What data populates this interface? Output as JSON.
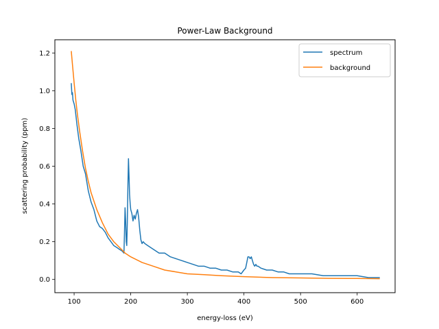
{
  "chart_data": {
    "type": "line",
    "title": "Power-Law Background",
    "xlabel": "energy-loss (eV)",
    "ylabel": "scattering probability (ppm)",
    "xlim": [
      66,
      667
    ],
    "ylim": [
      -0.07,
      1.27
    ],
    "xticks": [
      100,
      200,
      300,
      400,
      500,
      600
    ],
    "yticks": [
      0.0,
      0.2,
      0.4,
      0.6,
      0.8,
      1.0,
      1.2
    ],
    "xtick_labels": [
      "100",
      "200",
      "300",
      "400",
      "500",
      "600"
    ],
    "ytick_labels": [
      "0.0",
      "0.2",
      "0.4",
      "0.6",
      "0.8",
      "1.0",
      "1.2"
    ],
    "legend": {
      "position": "top-right"
    },
    "grid": false,
    "series": [
      {
        "name": "spectrum",
        "color": "#1f77b4",
        "x": [
          95,
          96,
          97,
          98,
          100,
          102,
          105,
          108,
          112,
          116,
          120,
          125,
          130,
          135,
          140,
          145,
          150,
          155,
          160,
          165,
          170,
          175,
          180,
          185,
          188,
          189,
          190,
          191,
          192,
          193,
          194,
          195,
          196,
          197,
          198,
          199,
          200,
          202,
          204,
          206,
          208,
          210,
          212,
          214,
          216,
          218,
          220,
          222,
          225,
          230,
          240,
          250,
          260,
          270,
          280,
          290,
          300,
          310,
          320,
          330,
          340,
          350,
          360,
          370,
          380,
          390,
          395,
          400,
          403,
          405,
          407,
          409,
          411,
          413,
          415,
          417,
          419,
          421,
          423,
          425,
          430,
          440,
          450,
          460,
          470,
          480,
          490,
          500,
          520,
          540,
          560,
          580,
          600,
          620,
          640
        ],
        "y": [
          1.04,
          0.98,
          0.99,
          0.95,
          0.93,
          0.9,
          0.82,
          0.75,
          0.68,
          0.6,
          0.56,
          0.47,
          0.41,
          0.37,
          0.31,
          0.28,
          0.27,
          0.25,
          0.22,
          0.2,
          0.18,
          0.17,
          0.16,
          0.15,
          0.14,
          0.25,
          0.38,
          0.31,
          0.2,
          0.18,
          0.3,
          0.5,
          0.64,
          0.55,
          0.45,
          0.4,
          0.37,
          0.35,
          0.31,
          0.34,
          0.32,
          0.35,
          0.37,
          0.33,
          0.26,
          0.21,
          0.19,
          0.2,
          0.19,
          0.18,
          0.16,
          0.14,
          0.14,
          0.12,
          0.11,
          0.1,
          0.09,
          0.08,
          0.07,
          0.07,
          0.06,
          0.06,
          0.05,
          0.05,
          0.04,
          0.04,
          0.03,
          0.05,
          0.06,
          0.09,
          0.12,
          0.12,
          0.11,
          0.12,
          0.1,
          0.08,
          0.07,
          0.08,
          0.07,
          0.07,
          0.06,
          0.05,
          0.05,
          0.04,
          0.04,
          0.03,
          0.03,
          0.03,
          0.03,
          0.02,
          0.02,
          0.02,
          0.02,
          0.01,
          0.01
        ]
      },
      {
        "name": "background",
        "color": "#ff7f0e",
        "x": [
          95,
          97,
          100,
          103,
          106,
          110,
          115,
          120,
          125,
          130,
          140,
          150,
          160,
          170,
          180,
          190,
          200,
          220,
          240,
          260,
          280,
          300,
          330,
          360,
          400,
          450,
          500,
          550,
          600,
          640
        ],
        "y": [
          1.21,
          1.14,
          1.04,
          0.95,
          0.87,
          0.78,
          0.68,
          0.59,
          0.52,
          0.46,
          0.37,
          0.3,
          0.24,
          0.2,
          0.17,
          0.14,
          0.12,
          0.09,
          0.07,
          0.05,
          0.04,
          0.03,
          0.025,
          0.02,
          0.015,
          0.01,
          0.008,
          0.006,
          0.005,
          0.004
        ]
      }
    ]
  }
}
